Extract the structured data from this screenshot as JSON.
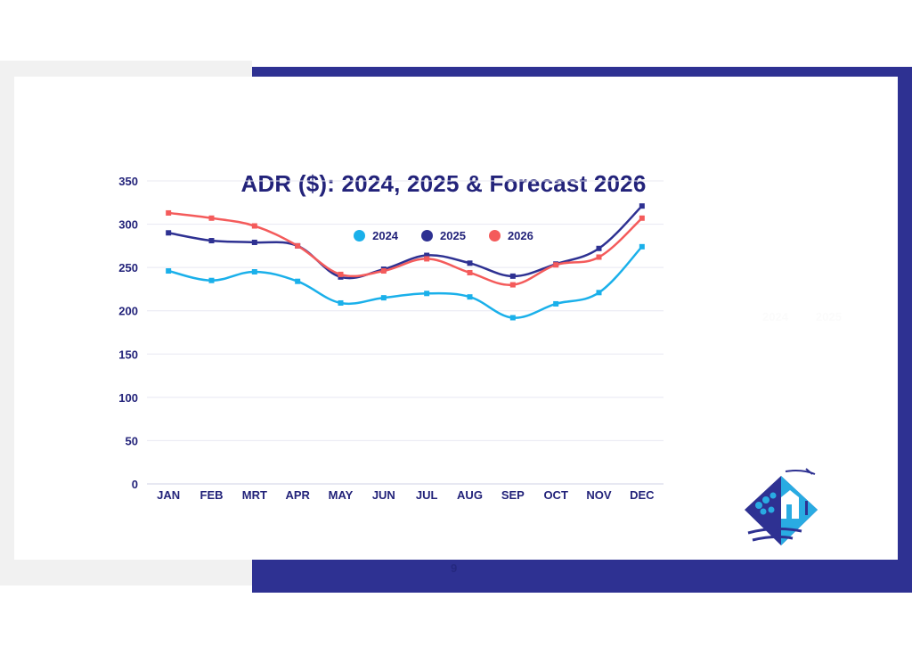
{
  "page": {
    "number": "9",
    "ghost_labels": [
      "2024",
      "2025"
    ]
  },
  "colors": {
    "brand_blue": "#2e3192",
    "series_2024": "#1ab0ea",
    "series_2025": "#2e3192",
    "series_2026": "#f45b5b",
    "title": "#23237a"
  },
  "logo": {
    "icon": "resort-diamond-logo-icon"
  },
  "chart_data": {
    "type": "line",
    "title": "ADR ($): 2024, 2025 & Forecast 2026",
    "xlabel": "",
    "ylabel": "",
    "categories": [
      "JAN",
      "FEB",
      "MRT",
      "APR",
      "MAY",
      "JUN",
      "JUL",
      "AUG",
      "SEP",
      "OCT",
      "NOV",
      "DEC"
    ],
    "ylim": [
      0,
      350
    ],
    "yticks": [
      0,
      50,
      100,
      150,
      200,
      250,
      300,
      350
    ],
    "grid": true,
    "legend_position": "top-center",
    "smooth": true,
    "marker": "square",
    "series": [
      {
        "name": "2024",
        "color": "#1ab0ea",
        "values": [
          246,
          235,
          245,
          234,
          209,
          215,
          220,
          216,
          192,
          208,
          221,
          274
        ]
      },
      {
        "name": "2025",
        "color": "#2e3192",
        "values": [
          290,
          281,
          279,
          275,
          239,
          248,
          264,
          255,
          240,
          254,
          272,
          321
        ]
      },
      {
        "name": "2026",
        "color": "#f45b5b",
        "values": [
          313,
          307,
          298,
          275,
          242,
          246,
          260,
          244,
          230,
          253,
          262,
          307
        ]
      }
    ]
  }
}
